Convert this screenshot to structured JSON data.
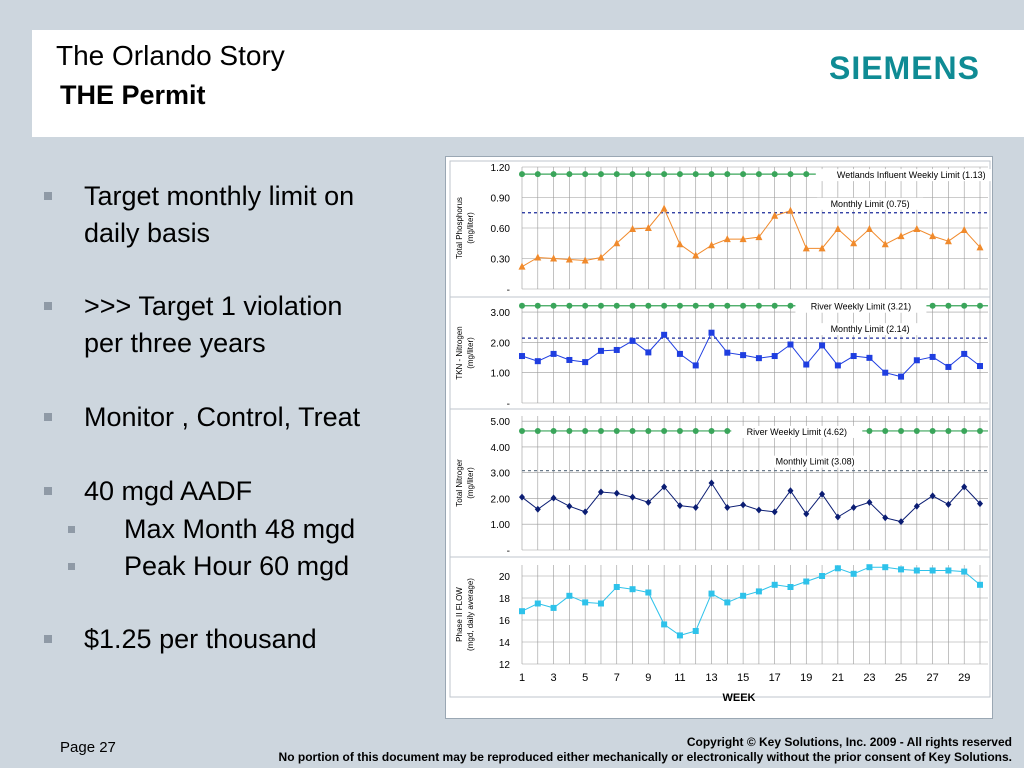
{
  "header": {
    "title": "The Orlando Story",
    "subtitle": "THE Permit",
    "logo": "SIEMENS"
  },
  "bullets": [
    {
      "text": "Target monthly limit on",
      "level": 1
    },
    {
      "text": "daily basis",
      "level": 0
    },
    {
      "text": ">>> Target 1 violation",
      "level": 1
    },
    {
      "text": "per three years",
      "level": 0
    },
    {
      "text": "Monitor , Control, Treat",
      "level": 1
    },
    {
      "text": "40 mgd AADF",
      "level": 1
    },
    {
      "text": "Max Month 48 mgd",
      "level": 2
    },
    {
      "text": "Peak Hour 60 mgd",
      "level": 2
    },
    {
      "text": "$1.25 per thousand",
      "level": 1
    }
  ],
  "footer": {
    "page": "Page 27",
    "copyright": "Copyright © Key Solutions, Inc. 2009  -  All rights reserved",
    "notice": "No portion of this document may be reproduced either mechanically or electronically without the prior consent of Key Solutions."
  },
  "chart_data": [
    {
      "type": "line",
      "ylabel": "Total Phosphorus\n(mg/liter)",
      "ylim": [
        0,
        1.2
      ],
      "yticks": [
        {
          "v": 1.2,
          "t": "1.20"
        },
        {
          "v": 0.9,
          "t": "0.90"
        },
        {
          "v": 0.6,
          "t": "0.60"
        },
        {
          "v": 0.3,
          "t": "0.30"
        },
        {
          "v": 0,
          "t": "-"
        }
      ],
      "color": "#f08a2c",
      "marker": "triangle",
      "x": [
        1,
        2,
        3,
        4,
        5,
        6,
        7,
        8,
        9,
        10,
        11,
        12,
        13,
        14,
        15,
        16,
        17,
        18,
        19,
        20,
        21,
        22,
        23,
        24,
        25,
        26,
        27,
        28,
        29,
        30
      ],
      "values": [
        0.22,
        0.31,
        0.3,
        0.29,
        0.28,
        0.31,
        0.45,
        0.59,
        0.6,
        0.79,
        0.44,
        0.33,
        0.43,
        0.49,
        0.49,
        0.51,
        0.72,
        0.77,
        0.4,
        0.4,
        0.59,
        0.45,
        0.59,
        0.44,
        0.52,
        0.59,
        0.52,
        0.47,
        0.58,
        0.41
      ],
      "limits": [
        {
          "name": "Wetlands Influent Weekly Limit (1.13)",
          "value": 1.13,
          "style": "green-dots",
          "label_x": 0.85
        },
        {
          "name": "Monthly Limit (0.75)",
          "value": 0.75,
          "style": "blue-dash",
          "label_x": 0.76
        }
      ]
    },
    {
      "type": "line",
      "ylabel": "TKN - Nitrogen\n(mg/liter)",
      "ylim": [
        0,
        3.3
      ],
      "yticks": [
        {
          "v": 3,
          "t": "3.00"
        },
        {
          "v": 2,
          "t": "2.00"
        },
        {
          "v": 1,
          "t": "1.00"
        },
        {
          "v": 0,
          "t": "-"
        }
      ],
      "color": "#1f3ee0",
      "marker": "square",
      "x": [
        1,
        2,
        3,
        4,
        5,
        6,
        7,
        8,
        9,
        10,
        11,
        12,
        13,
        14,
        15,
        16,
        17,
        18,
        19,
        20,
        21,
        22,
        23,
        24,
        25,
        26,
        27,
        28,
        29,
        30
      ],
      "values": [
        1.55,
        1.38,
        1.62,
        1.42,
        1.35,
        1.72,
        1.75,
        2.05,
        1.67,
        2.25,
        1.62,
        1.24,
        2.32,
        1.66,
        1.58,
        1.48,
        1.55,
        1.93,
        1.27,
        1.9,
        1.24,
        1.55,
        1.49,
        1.0,
        0.87,
        1.41,
        1.52,
        1.19,
        1.62,
        1.22
      ],
      "limits": [
        {
          "name": "River Weekly Limit (3.21)",
          "value": 3.21,
          "style": "green-dots",
          "label_x": 0.74
        },
        {
          "name": "Monthly Limit (2.14)",
          "value": 2.14,
          "style": "blue-dash",
          "label_x": 0.76
        }
      ]
    },
    {
      "type": "line",
      "ylabel": "Total Nitroger\n(mg/liter)",
      "ylim": [
        0,
        5.2
      ],
      "yticks": [
        {
          "v": 5,
          "t": "5.00"
        },
        {
          "v": 4,
          "t": "4.00"
        },
        {
          "v": 3,
          "t": "3.00"
        },
        {
          "v": 2,
          "t": "2.00"
        },
        {
          "v": 1,
          "t": "1.00"
        },
        {
          "v": 0,
          "t": "-"
        }
      ],
      "color": "#0b1d73",
      "marker": "diamond",
      "x": [
        1,
        2,
        3,
        4,
        5,
        6,
        7,
        8,
        9,
        10,
        11,
        12,
        13,
        14,
        15,
        16,
        17,
        18,
        19,
        20,
        21,
        22,
        23,
        24,
        25,
        26,
        27,
        28,
        29,
        30
      ],
      "values": [
        2.05,
        1.58,
        2.02,
        1.7,
        1.48,
        2.25,
        2.2,
        2.05,
        1.85,
        2.45,
        1.72,
        1.65,
        2.6,
        1.65,
        1.75,
        1.55,
        1.48,
        2.3,
        1.4,
        2.17,
        1.28,
        1.65,
        1.85,
        1.25,
        1.1,
        1.7,
        2.1,
        1.77,
        2.45,
        1.8
      ],
      "limits": [
        {
          "name": "River Weekly Limit (4.62)",
          "value": 4.62,
          "style": "green-dots",
          "label_x": 0.6
        },
        {
          "name": "Monthly Limit (3.08)",
          "value": 3.08,
          "style": "gray-dash",
          "label_x": 0.64
        }
      ]
    },
    {
      "type": "line",
      "ylabel": "Phase II FLOW\n(mgd, daily average)",
      "ylim": [
        12,
        21
      ],
      "yticks": [
        {
          "v": 20,
          "t": "20"
        },
        {
          "v": 18,
          "t": "18"
        },
        {
          "v": 16,
          "t": "16"
        },
        {
          "v": 14,
          "t": "14"
        },
        {
          "v": 12,
          "t": "12"
        }
      ],
      "color": "#2ec2ea",
      "marker": "square",
      "x": [
        1,
        2,
        3,
        4,
        5,
        6,
        7,
        8,
        9,
        10,
        11,
        12,
        13,
        14,
        15,
        16,
        17,
        18,
        19,
        20,
        21,
        22,
        23,
        24,
        25,
        26,
        27,
        28,
        29,
        30
      ],
      "xtick_labels": [
        "1",
        "3",
        "5",
        "7",
        "9",
        "11",
        "13",
        "15",
        "17",
        "19",
        "21",
        "23",
        "25",
        "27",
        "29"
      ],
      "xlabel": "WEEK",
      "values": [
        16.8,
        17.5,
        17.1,
        18.2,
        17.6,
        17.5,
        19.0,
        18.8,
        18.5,
        15.6,
        14.6,
        15.0,
        18.4,
        17.6,
        18.2,
        18.6,
        19.2,
        19.0,
        19.5,
        20.0,
        20.7,
        20.2,
        20.8,
        20.8,
        20.6,
        20.5,
        20.5,
        20.5,
        20.4,
        19.2
      ],
      "limits": []
    }
  ]
}
